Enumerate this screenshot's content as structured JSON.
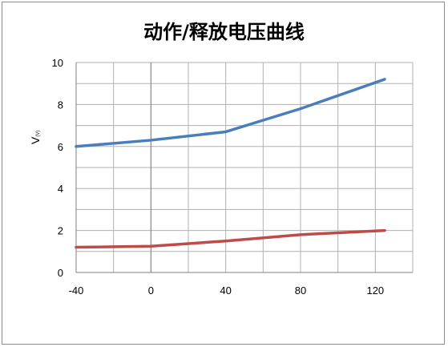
{
  "chart_data": {
    "type": "line",
    "title": "动作/释放电压曲线",
    "xlabel": "",
    "ylabel": "V",
    "ylabel_sub": "(V)",
    "x_ticks": [
      "-40",
      "0",
      "40",
      "80",
      "120"
    ],
    "y_ticks": [
      "0",
      "2",
      "4",
      "6",
      "8",
      "10"
    ],
    "xlim": [
      -40,
      140
    ],
    "ylim": [
      0,
      10
    ],
    "grid": true,
    "series": [
      {
        "color": "#4a7ebb",
        "x": [
          -40,
          0,
          40,
          80,
          125
        ],
        "y": [
          6.0,
          6.3,
          6.7,
          7.8,
          9.2
        ]
      },
      {
        "color": "#be4b48",
        "x": [
          -40,
          0,
          40,
          80,
          125
        ],
        "y": [
          1.2,
          1.25,
          1.5,
          1.8,
          2.0
        ]
      }
    ]
  }
}
